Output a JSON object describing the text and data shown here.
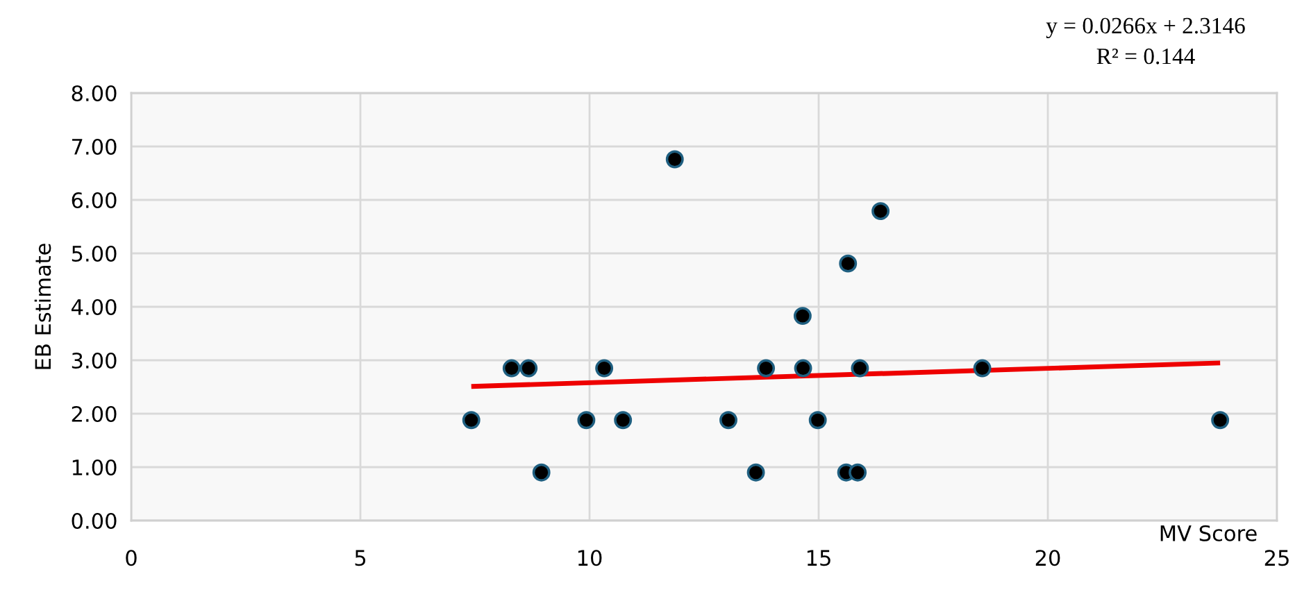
{
  "chart_data": {
    "type": "scatter",
    "xlabel": "MV Score",
    "ylabel": "EB Estimate",
    "x": [
      7.42,
      8.3,
      8.67,
      8.95,
      9.93,
      10.32,
      10.73,
      11.86,
      13.03,
      13.63,
      13.85,
      14.65,
      14.66,
      14.98,
      15.6,
      15.64,
      15.85,
      15.9,
      16.35,
      18.57,
      23.76
    ],
    "series": [
      {
        "color": "#000000",
        "marker": "circle",
        "values": [
          1.88,
          2.85,
          2.85,
          0.9,
          1.88,
          2.85,
          1.88,
          6.76,
          1.88,
          0.9,
          2.85,
          3.83,
          2.85,
          1.88,
          0.9,
          4.81,
          0.9,
          2.85,
          5.79,
          2.85,
          1.88
        ]
      },
      {
        "type": "line",
        "color": "#ee0000",
        "marker": "none",
        "line_style": "solid",
        "x": [
          7.42,
          23.76
        ],
        "values": [
          2.51,
          2.95
        ]
      }
    ],
    "annotations": [
      "y = 0.0266x + 2.3146",
      "R² = 0.144"
    ],
    "xlim": [
      0,
      25
    ],
    "xticks": [
      0,
      5,
      10,
      15,
      20,
      25
    ],
    "ylim": [
      0,
      8
    ],
    "yticks": [
      {
        "value": 0,
        "label": "0.00"
      },
      {
        "value": 1,
        "label": "1.00"
      },
      {
        "value": 2,
        "label": "2.00"
      },
      {
        "value": 3,
        "label": "3.00"
      },
      {
        "value": 4,
        "label": "4.00"
      },
      {
        "value": 5,
        "label": "5.00"
      },
      {
        "value": 6,
        "label": "6.00"
      },
      {
        "value": 7,
        "label": "7.00"
      },
      {
        "value": 8,
        "label": "8.00"
      }
    ],
    "grid": true,
    "legend": false
  }
}
